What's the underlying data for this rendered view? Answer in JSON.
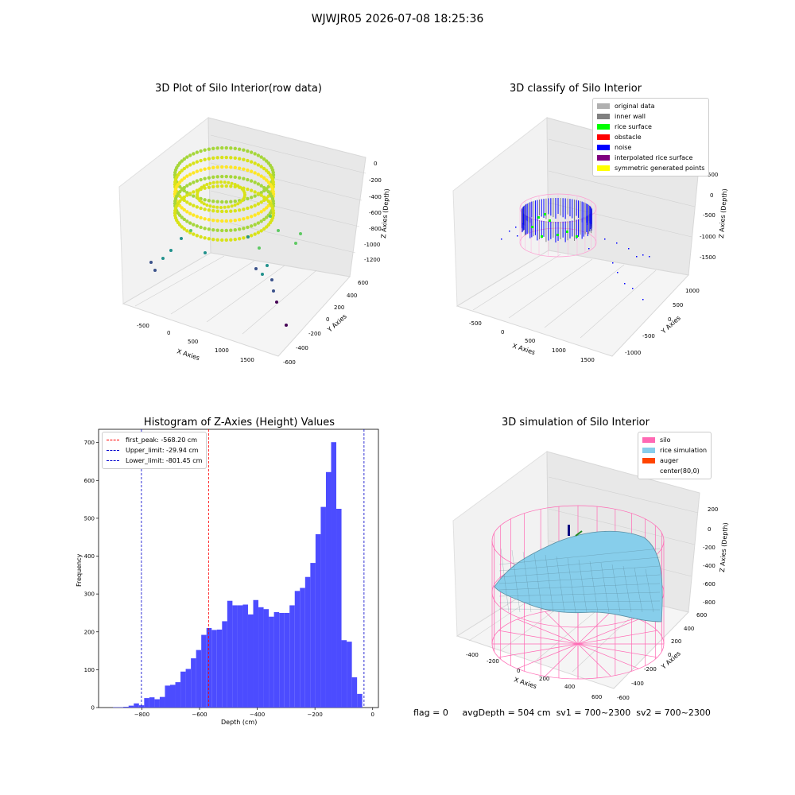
{
  "title": "WJWJR05 2026-07-08 18:25:36",
  "panels": {
    "raw": {
      "title": "3D Plot of Silo Interior(row data)",
      "xlabel": "X Axies",
      "ylabel": "Y Axies",
      "zlabel": "Z Axies (Depth)",
      "xticks": [
        "-500",
        "0",
        "500",
        "1000",
        "1500"
      ],
      "yticks": [
        "-600",
        "-400",
        "-200",
        "0",
        "200",
        "400",
        "600"
      ],
      "zticks": [
        "0",
        "-200",
        "-400",
        "-600",
        "-800",
        "-1000",
        "-1200"
      ]
    },
    "classify": {
      "title": "3D classify of Silo Interior",
      "xlabel": "X Axies",
      "ylabel": "Y Axies",
      "zlabel": "Z Axies (Depth)",
      "xticks": [
        "-500",
        "0",
        "500",
        "1000",
        "1500"
      ],
      "yticks": [
        "-1000",
        "-500",
        "0",
        "500",
        "1000"
      ],
      "zticks": [
        "500",
        "0",
        "-500",
        "-1000",
        "-1500"
      ],
      "legend": [
        {
          "label": "original data",
          "color": "#b0b0b0"
        },
        {
          "label": "inner wall",
          "color": "#808080"
        },
        {
          "label": "rice surface",
          "color": "#00ff00"
        },
        {
          "label": "obstacle",
          "color": "#ff0000"
        },
        {
          "label": "noise",
          "color": "#0000ff"
        },
        {
          "label": "interpolated rice surface",
          "color": "#800080"
        },
        {
          "label": "symmetric generated points",
          "color": "#ffff00"
        }
      ]
    },
    "histogram": {
      "title": "Histogram of Z-Axies (Height) Values",
      "xlabel": "Depth (cm)",
      "ylabel": "Frequency",
      "legend": [
        {
          "label": "first_peak: -568.20 cm",
          "color": "#ff0000"
        },
        {
          "label": "Upper_limit: -29.94 cm",
          "color": "#0000cc"
        },
        {
          "label": "Lower_limit: -801.45 cm",
          "color": "#0000cc"
        }
      ]
    },
    "simulation": {
      "title": "3D simulation of Silo Interior",
      "xlabel": "X Axies",
      "ylabel": "Y Axies",
      "zlabel": "Z Axies (Depth)",
      "xticks": [
        "-400",
        "-200",
        "0",
        "200",
        "400",
        "600"
      ],
      "yticks": [
        "-600",
        "-400",
        "-200",
        "0",
        "200",
        "400",
        "600"
      ],
      "zticks": [
        "200",
        "0",
        "-200",
        "-400",
        "-600",
        "-800"
      ],
      "legend": [
        {
          "label": "silo",
          "color": "#ff69b4"
        },
        {
          "label": "rice simulation",
          "color": "#87ceeb"
        },
        {
          "label": "auger",
          "color": "#ff4500"
        },
        {
          "label": "center(80,0)",
          "color": "#ffffff"
        }
      ]
    }
  },
  "status": {
    "flag": "flag = 0",
    "avg_depth": "avgDepth = 504 cm",
    "sv1": "sv1 = 700~2300",
    "sv2": "sv2 = 700~2300"
  },
  "chart_data": [
    {
      "type": "scatter",
      "title": "3D Plot of Silo Interior(row data)",
      "xlabel": "X Axies",
      "ylabel": "Y Axies",
      "zlabel": "Z Axies (Depth)",
      "xlim": [
        -800,
        1800
      ],
      "ylim": [
        -650,
        650
      ],
      "zlim": [
        -1300,
        50
      ],
      "colormap": "viridis"
    },
    {
      "type": "scatter",
      "title": "3D classify of Silo Interior",
      "xlabel": "X Axies",
      "ylabel": "Y Axies",
      "zlabel": "Z Axies (Depth)",
      "xlim": [
        -800,
        1800
      ],
      "ylim": [
        -1100,
        1100
      ],
      "zlim": [
        -1700,
        500
      ],
      "series": [
        {
          "name": "original data",
          "color": "#b0b0b0"
        },
        {
          "name": "inner wall",
          "color": "#808080"
        },
        {
          "name": "rice surface",
          "color": "#00ff00"
        },
        {
          "name": "obstacle",
          "color": "#ff0000"
        },
        {
          "name": "noise",
          "color": "#0000ff"
        },
        {
          "name": "interpolated rice surface",
          "color": "#800080"
        },
        {
          "name": "symmetric generated points",
          "color": "#ffff00"
        }
      ]
    },
    {
      "type": "bar",
      "title": "Histogram of Z-Axies (Height) Values",
      "xlabel": "Depth (cm)",
      "ylabel": "Frequency",
      "xlim": [
        -950,
        20
      ],
      "ylim": [
        0,
        735
      ],
      "xticks": [
        -800,
        -600,
        -400,
        -200,
        0
      ],
      "yticks": [
        0,
        100,
        200,
        300,
        400,
        500,
        600,
        700
      ],
      "bin_width": 18,
      "bin_starts": [
        -900,
        -882,
        -864,
        -846,
        -828,
        -810,
        -792,
        -774,
        -756,
        -738,
        -720,
        -702,
        -684,
        -666,
        -648,
        -630,
        -612,
        -594,
        -576,
        -558,
        -540,
        -522,
        -504,
        -486,
        -468,
        -450,
        -432,
        -414,
        -396,
        -378,
        -360,
        -342,
        -324,
        -306,
        -288,
        -270,
        -252,
        -234,
        -216,
        -198,
        -180,
        -162,
        -144,
        -126,
        -108,
        -90,
        -72,
        -54,
        -36,
        -18
      ],
      "values": [
        1,
        1,
        2,
        5,
        11,
        6,
        25,
        27,
        22,
        28,
        58,
        60,
        67,
        95,
        102,
        130,
        152,
        192,
        210,
        205,
        206,
        228,
        282,
        270,
        270,
        272,
        246,
        284,
        265,
        260,
        240,
        252,
        250,
        250,
        270,
        308,
        316,
        345,
        382,
        458,
        530,
        622,
        701,
        525,
        178,
        174,
        80,
        36,
        0,
        0
      ],
      "color": "#4c4cff",
      "lines": [
        {
          "name": "first_peak: -568.20 cm",
          "x": -568.2,
          "color": "#ff0000"
        },
        {
          "name": "Upper_limit: -29.94 cm",
          "x": -29.94,
          "color": "#0000cc"
        },
        {
          "name": "Lower_limit: -801.45 cm",
          "x": -801.45,
          "color": "#0000cc"
        }
      ],
      "legend": "top-left"
    },
    {
      "type": "area",
      "title": "3D simulation of Silo Interior",
      "xlabel": "X Axies",
      "ylabel": "Y Axies",
      "zlabel": "Z Axies (Depth)",
      "xlim": [
        -500,
        700
      ],
      "ylim": [
        -650,
        650
      ],
      "zlim": [
        -850,
        300
      ],
      "series": [
        {
          "name": "silo",
          "color": "#ff69b4"
        },
        {
          "name": "rice simulation",
          "color": "#87ceeb"
        },
        {
          "name": "auger",
          "color": "#ff4500"
        },
        {
          "name": "center(80,0)",
          "color": "#ffffff"
        }
      ]
    }
  ]
}
